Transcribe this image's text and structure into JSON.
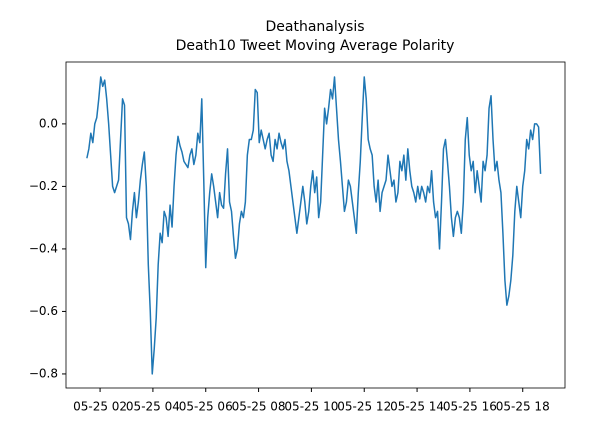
{
  "chart_data": {
    "type": "line",
    "title": "Deathanalysis",
    "subtitle": "Death10 Tweet Moving Average Polarity",
    "x": [
      1.5,
      1.575,
      1.65,
      1.725,
      1.8,
      1.875,
      1.95,
      2.025,
      2.1,
      2.175,
      2.25,
      2.325,
      2.4,
      2.475,
      2.55,
      2.625,
      2.7,
      2.775,
      2.85,
      2.925,
      3,
      3.075,
      3.15,
      3.225,
      3.3,
      3.375,
      3.45,
      3.525,
      3.6,
      3.675,
      3.75,
      3.825,
      3.9,
      3.975,
      4.05,
      4.125,
      4.2,
      4.275,
      4.35,
      4.425,
      4.5,
      4.575,
      4.65,
      4.725,
      4.8,
      4.875,
      4.95,
      5.025,
      5.1,
      5.175,
      5.25,
      5.325,
      5.4,
      5.475,
      5.55,
      5.625,
      5.7,
      5.775,
      5.85,
      5.925,
      6,
      6.075,
      6.15,
      6.225,
      6.3,
      6.375,
      6.45,
      6.525,
      6.6,
      6.675,
      6.75,
      6.825,
      6.9,
      6.975,
      7.05,
      7.125,
      7.2,
      7.275,
      7.35,
      7.425,
      7.5,
      7.575,
      7.65,
      7.725,
      7.8,
      7.875,
      7.95,
      8.025,
      8.1,
      8.175,
      8.25,
      8.325,
      8.4,
      8.475,
      8.55,
      8.625,
      8.7,
      8.775,
      8.85,
      8.925,
      9,
      9.075,
      9.15,
      9.225,
      9.3,
      9.375,
      9.45,
      9.525,
      9.6,
      9.675,
      9.75,
      9.825,
      9.9,
      9.975,
      10.05,
      10.125,
      10.2,
      10.275,
      10.35,
      10.425,
      10.5,
      10.575,
      10.65,
      10.725,
      10.8,
      10.875,
      10.95,
      11.025,
      11.1,
      11.175,
      11.25,
      11.325,
      11.4,
      11.475,
      11.55,
      11.625,
      11.7,
      11.775,
      11.85,
      11.925,
      12,
      12.075,
      12.15,
      12.225,
      12.3,
      12.375,
      12.45,
      12.525,
      12.6,
      12.675,
      12.75,
      12.825,
      12.9,
      12.975,
      13.05,
      13.125,
      13.2,
      13.275,
      13.35,
      13.425,
      13.5,
      13.575,
      13.65,
      13.725,
      13.8,
      13.875,
      13.95,
      14.025,
      14.1,
      14.175,
      14.25,
      14.325,
      14.4,
      14.475,
      14.55,
      14.625,
      14.7,
      14.775,
      14.85,
      14.925,
      15,
      15.075,
      15.15,
      15.225,
      15.3,
      15.375,
      15.45,
      15.525,
      15.6,
      15.675,
      15.75,
      15.825,
      15.9,
      15.975,
      16.05,
      16.125,
      16.2,
      16.275,
      16.35,
      16.425,
      16.5,
      16.575,
      16.65,
      16.725,
      16.8,
      16.875,
      16.95,
      17.025,
      17.1,
      17.175,
      17.25,
      17.325,
      17.4,
      17.475,
      17.55,
      17.625,
      17.7,
      17.775,
      17.85,
      17.925,
      18,
      18.075,
      18.15,
      18.225,
      18.3,
      18.375,
      18.45,
      18.525,
      18.6,
      18.675
    ],
    "series": [
      {
        "color": "#1f77b4",
        "values": [
          -0.11,
          -0.08,
          -0.03,
          -0.06,
          0.0,
          0.02,
          0.08,
          0.15,
          0.12,
          0.14,
          0.08,
          0.0,
          -0.1,
          -0.2,
          -0.22,
          -0.2,
          -0.18,
          -0.05,
          0.08,
          0.06,
          -0.3,
          -0.32,
          -0.37,
          -0.28,
          -0.22,
          -0.3,
          -0.25,
          -0.18,
          -0.13,
          -0.09,
          -0.2,
          -0.45,
          -0.6,
          -0.8,
          -0.72,
          -0.62,
          -0.45,
          -0.35,
          -0.38,
          -0.28,
          -0.3,
          -0.36,
          -0.26,
          -0.33,
          -0.2,
          -0.1,
          -0.04,
          -0.07,
          -0.09,
          -0.12,
          -0.13,
          -0.14,
          -0.1,
          -0.08,
          -0.13,
          -0.1,
          -0.03,
          -0.06,
          0.08,
          -0.18,
          -0.46,
          -0.3,
          -0.22,
          -0.16,
          -0.2,
          -0.25,
          -0.3,
          -0.22,
          -0.26,
          -0.27,
          -0.16,
          -0.08,
          -0.25,
          -0.28,
          -0.36,
          -0.43,
          -0.4,
          -0.32,
          -0.28,
          -0.3,
          -0.25,
          -0.1,
          -0.05,
          -0.05,
          -0.02,
          0.11,
          0.1,
          -0.06,
          -0.02,
          -0.05,
          -0.08,
          -0.05,
          -0.03,
          -0.1,
          -0.12,
          -0.05,
          -0.08,
          -0.03,
          -0.06,
          -0.08,
          -0.05,
          -0.12,
          -0.15,
          -0.2,
          -0.25,
          -0.3,
          -0.35,
          -0.3,
          -0.25,
          -0.2,
          -0.25,
          -0.32,
          -0.28,
          -0.2,
          -0.15,
          -0.22,
          -0.17,
          -0.3,
          -0.25,
          -0.1,
          0.05,
          0.0,
          0.05,
          0.11,
          0.08,
          0.15,
          0.05,
          -0.05,
          -0.12,
          -0.2,
          -0.28,
          -0.25,
          -0.18,
          -0.2,
          -0.25,
          -0.3,
          -0.35,
          -0.22,
          -0.12,
          0.02,
          0.15,
          0.08,
          -0.05,
          -0.08,
          -0.1,
          -0.2,
          -0.25,
          -0.18,
          -0.28,
          -0.22,
          -0.2,
          -0.18,
          -0.1,
          -0.15,
          -0.2,
          -0.18,
          -0.25,
          -0.22,
          -0.12,
          -0.15,
          -0.1,
          -0.18,
          -0.08,
          -0.15,
          -0.2,
          -0.22,
          -0.25,
          -0.2,
          -0.24,
          -0.2,
          -0.22,
          -0.25,
          -0.2,
          -0.22,
          -0.15,
          -0.25,
          -0.3,
          -0.28,
          -0.4,
          -0.25,
          -0.08,
          -0.05,
          -0.12,
          -0.2,
          -0.3,
          -0.36,
          -0.3,
          -0.28,
          -0.3,
          -0.35,
          -0.25,
          -0.05,
          0.02,
          -0.1,
          -0.15,
          -0.12,
          -0.22,
          -0.15,
          -0.2,
          -0.25,
          -0.12,
          -0.15,
          -0.1,
          0.05,
          0.09,
          -0.05,
          -0.15,
          -0.12,
          -0.18,
          -0.22,
          -0.35,
          -0.5,
          -0.58,
          -0.55,
          -0.5,
          -0.42,
          -0.28,
          -0.2,
          -0.25,
          -0.3,
          -0.2,
          -0.15,
          -0.05,
          -0.08,
          -0.02,
          -0.05,
          0.0,
          0.0,
          -0.01,
          -0.16
        ]
      }
    ],
    "xlim": [
      0.71,
      19.6
    ],
    "xticks": [
      {
        "value": 2,
        "label": "05-25 02"
      },
      {
        "value": 4,
        "label": "05-25 04"
      },
      {
        "value": 6,
        "label": "05-25 06"
      },
      {
        "value": 8,
        "label": "05-25 08"
      },
      {
        "value": 10,
        "label": "05-25 10"
      },
      {
        "value": 12,
        "label": "05-25 12"
      },
      {
        "value": 14,
        "label": "05-25 14"
      },
      {
        "value": 16,
        "label": "05-25 16"
      },
      {
        "value": 18,
        "label": "05-25 18"
      }
    ],
    "ylim": [
      -0.845,
      0.198
    ],
    "yticks": [
      {
        "value": 0,
        "label": "0.0"
      },
      {
        "value": -0.2,
        "label": "−0.2"
      },
      {
        "value": -0.4,
        "label": "−0.4"
      },
      {
        "value": -0.6,
        "label": "−0.6"
      },
      {
        "value": -0.8,
        "label": "−0.8"
      }
    ],
    "grid": false
  }
}
